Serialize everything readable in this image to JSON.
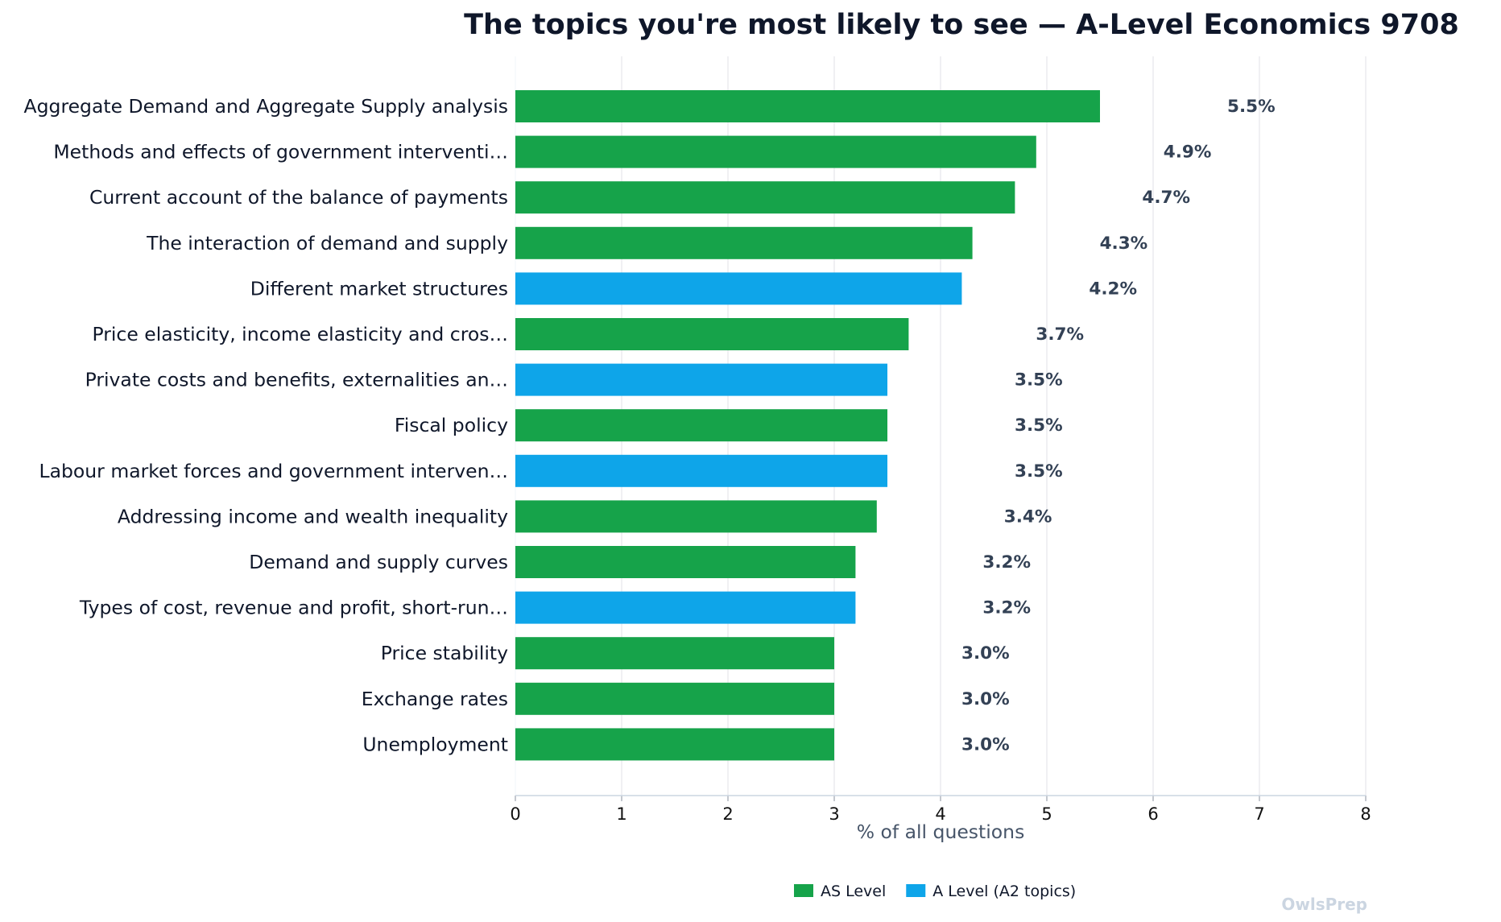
{
  "chart_data": {
    "type": "bar",
    "orientation": "horizontal",
    "title": "The topics you're most likely to see — A-Level Economics 9708",
    "xlabel": "% of all questions",
    "ylabel": "",
    "xlim": [
      0,
      8
    ],
    "xticks": [
      0,
      1,
      2,
      3,
      4,
      5,
      6,
      7,
      8
    ],
    "grid": "vertical",
    "legend_placement": "bottom-center",
    "legend": [
      {
        "name": "AS Level",
        "color": "#16a34a"
      },
      {
        "name": "A Level (A2 topics)",
        "color": "#0ea5e9"
      }
    ],
    "bars": [
      {
        "label": "Aggregate Demand and Aggregate Supply analysis",
        "value": 5.5,
        "value_label": "5.5%",
        "group": "AS Level"
      },
      {
        "label": "Methods and effects of government interventi…",
        "value": 4.9,
        "value_label": "4.9%",
        "group": "AS Level"
      },
      {
        "label": "Current account of the balance of payments",
        "value": 4.7,
        "value_label": "4.7%",
        "group": "AS Level"
      },
      {
        "label": "The interaction of demand and supply",
        "value": 4.3,
        "value_label": "4.3%",
        "group": "AS Level"
      },
      {
        "label": "Different market structures",
        "value": 4.2,
        "value_label": "4.2%",
        "group": "A Level (A2 topics)"
      },
      {
        "label": "Price elasticity, income elasticity and cros…",
        "value": 3.7,
        "value_label": "3.7%",
        "group": "AS Level"
      },
      {
        "label": "Private costs and benefits, externalities an…",
        "value": 3.5,
        "value_label": "3.5%",
        "group": "A Level (A2 topics)"
      },
      {
        "label": "Fiscal policy",
        "value": 3.5,
        "value_label": "3.5%",
        "group": "AS Level"
      },
      {
        "label": "Labour market forces and government interven…",
        "value": 3.5,
        "value_label": "3.5%",
        "group": "A Level (A2 topics)"
      },
      {
        "label": "Addressing income and wealth inequality",
        "value": 3.4,
        "value_label": "3.4%",
        "group": "AS Level"
      },
      {
        "label": "Demand and supply curves",
        "value": 3.2,
        "value_label": "3.2%",
        "group": "AS Level"
      },
      {
        "label": "Types of cost, revenue and profit, short-run…",
        "value": 3.2,
        "value_label": "3.2%",
        "group": "A Level (A2 topics)"
      },
      {
        "label": "Price stability",
        "value": 3.0,
        "value_label": "3.0%",
        "group": "AS Level"
      },
      {
        "label": "Exchange rates",
        "value": 3.0,
        "value_label": "3.0%",
        "group": "AS Level"
      },
      {
        "label": "Unemployment",
        "value": 3.0,
        "value_label": "3.0%",
        "group": "AS Level"
      }
    ]
  },
  "watermark": "OwlsPrep"
}
